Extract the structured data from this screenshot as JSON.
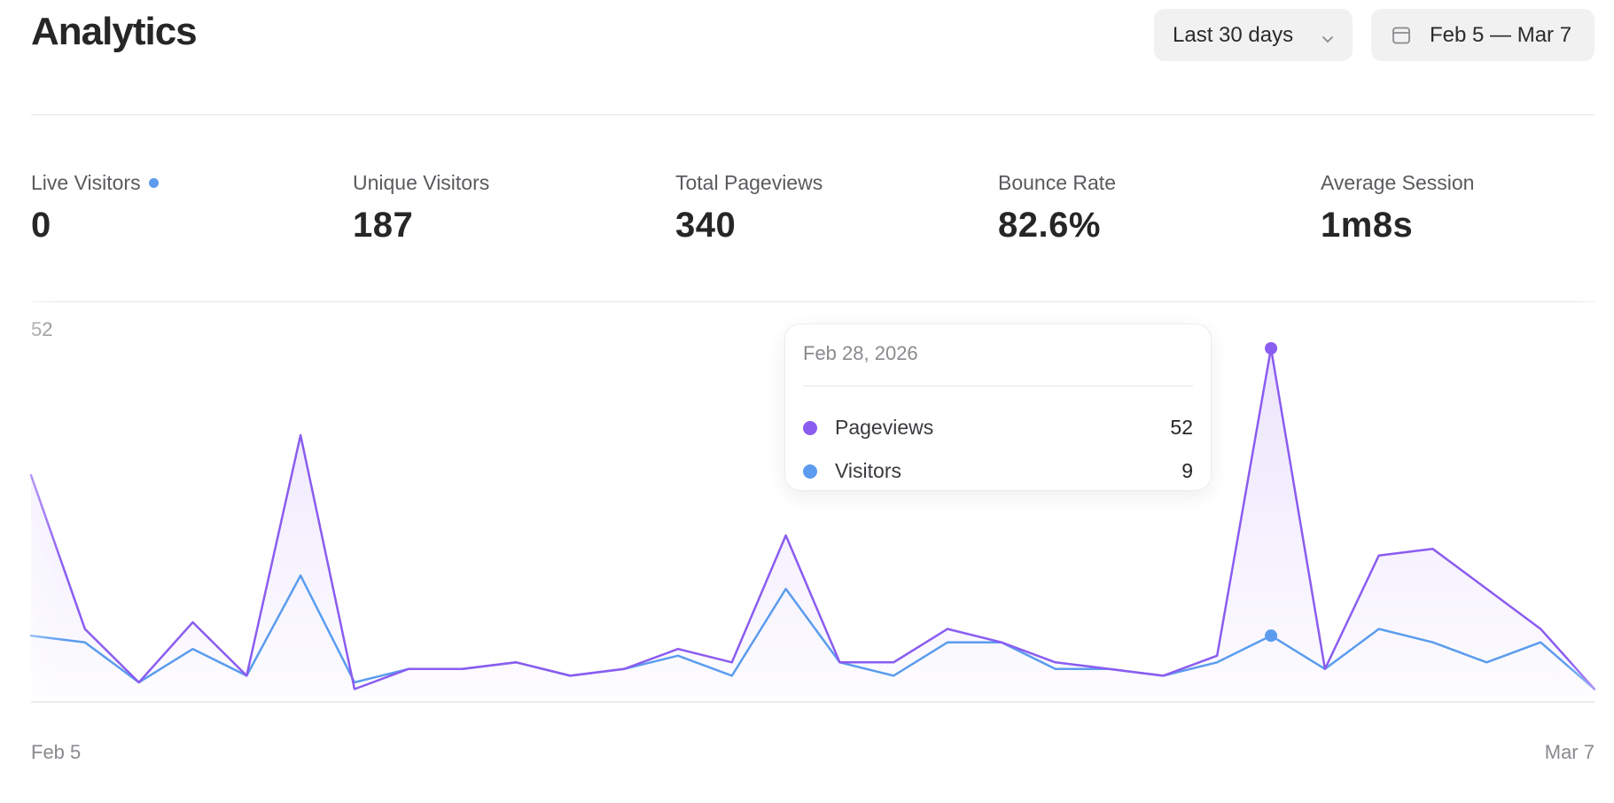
{
  "header": {
    "title": "Analytics",
    "range_select": {
      "label": "Last 30 days",
      "icon": "chevron-down-icon"
    },
    "date_picker": {
      "label": "Feb 5 — Mar 7",
      "icon": "calendar-icon"
    }
  },
  "stats": [
    {
      "label": "Live Visitors",
      "value": "0",
      "live": true
    },
    {
      "label": "Unique Visitors",
      "value": "187"
    },
    {
      "label": "Total Pageviews",
      "value": "340"
    },
    {
      "label": "Bounce Rate",
      "value": "82.6%"
    },
    {
      "label": "Average Session",
      "value": "1m8s"
    }
  ],
  "colors": {
    "pageviews": "#8b5cf0",
    "visitors": "#5b9cee",
    "live_dot": "#5b9cee"
  },
  "chart_data": {
    "type": "area",
    "y_max_label": "52",
    "ylim": [
      0,
      52
    ],
    "x_start_label": "Feb 5",
    "x_end_label": "Mar 7",
    "series": [
      {
        "name": "Pageviews",
        "color": "#8b5cf0",
        "values": [
          33,
          10,
          2,
          11,
          3,
          39,
          1,
          4,
          4,
          5,
          3,
          4,
          7,
          5,
          24,
          5,
          5,
          10,
          8,
          5,
          4,
          3,
          6,
          52,
          4,
          21,
          22,
          16,
          10,
          1
        ]
      },
      {
        "name": "Visitors",
        "color": "#5b9cee",
        "values": [
          9,
          8,
          2,
          7,
          3,
          18,
          2,
          4,
          4,
          5,
          3,
          4,
          6,
          3,
          16,
          5,
          3,
          8,
          8,
          4,
          4,
          3,
          5,
          9,
          4,
          10,
          8,
          5,
          8,
          1
        ]
      }
    ],
    "tooltip": {
      "date": "Feb 28, 2026",
      "index": 23,
      "rows": [
        {
          "name": "Pageviews",
          "value": "52",
          "color": "#8b5cf0"
        },
        {
          "name": "Visitors",
          "value": "9",
          "color": "#5b9cee"
        }
      ]
    }
  }
}
